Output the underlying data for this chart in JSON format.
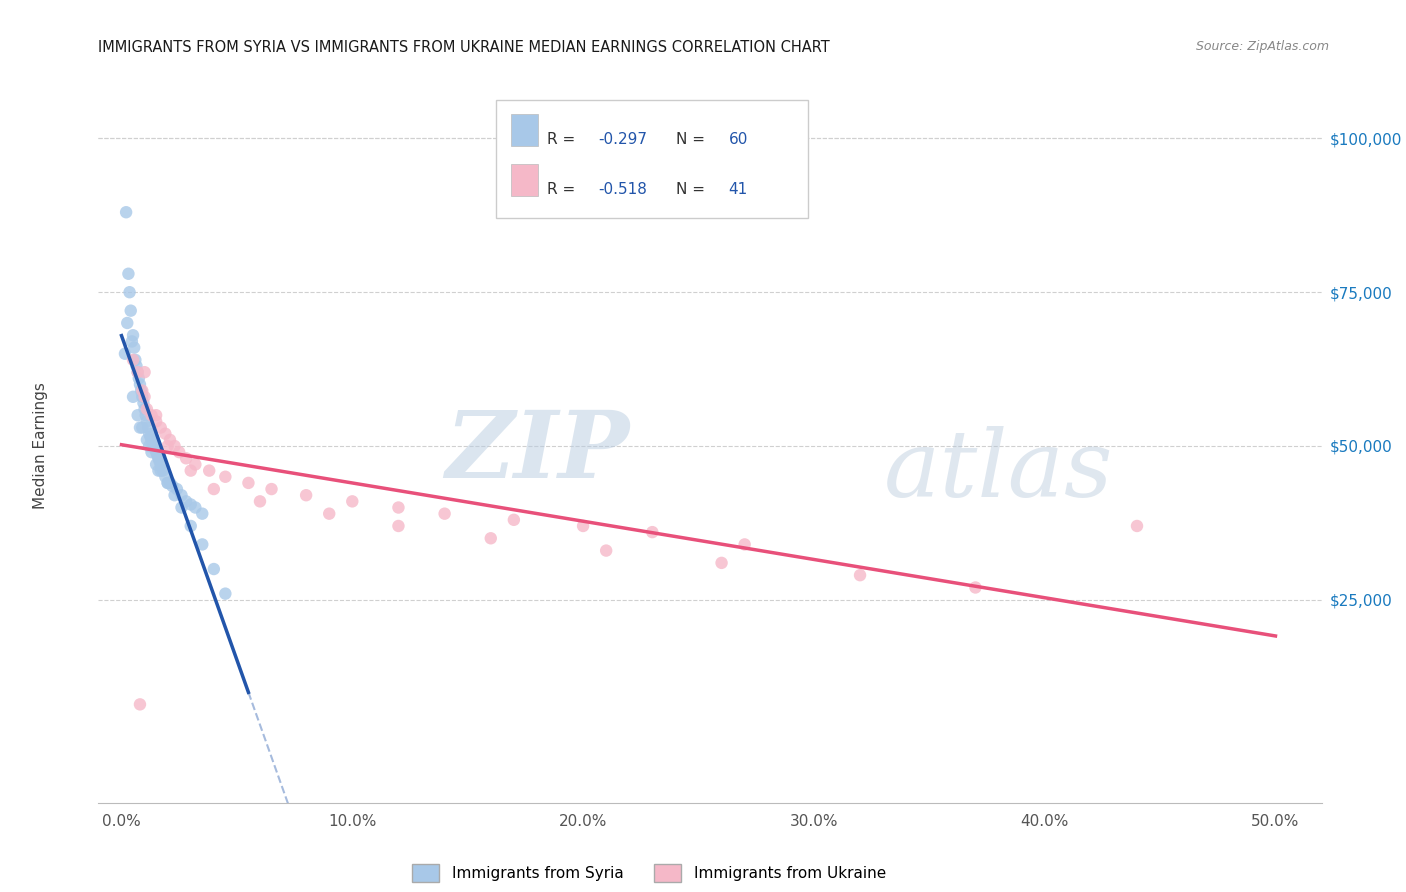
{
  "title": "IMMIGRANTS FROM SYRIA VS IMMIGRANTS FROM UKRAINE MEDIAN EARNINGS CORRELATION CHART",
  "source": "Source: ZipAtlas.com",
  "ylabel": "Median Earnings",
  "xlabel_ticks": [
    "0.0%",
    "10.0%",
    "20.0%",
    "30.0%",
    "40.0%",
    "50.0%"
  ],
  "xlabel_vals": [
    0.0,
    10.0,
    20.0,
    30.0,
    40.0,
    50.0
  ],
  "ylabel_ticks": [
    "$25,000",
    "$50,000",
    "$75,000",
    "$100,000"
  ],
  "ylabel_vals": [
    25000,
    50000,
    75000,
    100000
  ],
  "xlim": [
    -1.0,
    52.0
  ],
  "ylim": [
    -8000,
    108000
  ],
  "syria_color": "#a8c8e8",
  "ukraine_color": "#f5b8c8",
  "syria_line_color": "#2255aa",
  "ukraine_line_color": "#e8507a",
  "syria_R": -0.297,
  "syria_N": 60,
  "ukraine_R": -0.518,
  "ukraine_N": 41,
  "watermark_zip": "ZIP",
  "watermark_atlas": "atlas",
  "syria_x": [
    0.2,
    0.3,
    0.35,
    0.4,
    0.5,
    0.55,
    0.6,
    0.65,
    0.7,
    0.75,
    0.8,
    0.85,
    0.9,
    0.95,
    1.0,
    1.05,
    1.1,
    1.15,
    1.2,
    1.25,
    1.3,
    1.35,
    1.4,
    1.45,
    1.5,
    1.55,
    1.6,
    1.65,
    1.7,
    1.8,
    1.9,
    2.0,
    2.1,
    2.2,
    2.4,
    2.6,
    2.8,
    3.0,
    3.2,
    3.5,
    0.25,
    0.45,
    0.7,
    0.9,
    1.1,
    1.3,
    1.5,
    1.7,
    2.0,
    2.3,
    2.6,
    3.0,
    3.5,
    4.0,
    4.5,
    0.15,
    0.5,
    0.8,
    1.2,
    1.6
  ],
  "syria_y": [
    88000,
    78000,
    75000,
    72000,
    68000,
    66000,
    64000,
    63000,
    62000,
    61000,
    60000,
    59000,
    58000,
    57000,
    56000,
    55000,
    54000,
    53000,
    52000,
    51500,
    51000,
    50500,
    50000,
    49500,
    49000,
    48500,
    48000,
    47500,
    47000,
    46000,
    45000,
    44000,
    44000,
    43500,
    43000,
    42000,
    41000,
    40500,
    40000,
    39000,
    70000,
    67000,
    55000,
    53000,
    51000,
    49000,
    47000,
    46000,
    44000,
    42000,
    40000,
    37000,
    34000,
    30000,
    26000,
    65000,
    58000,
    53000,
    50000,
    46000
  ],
  "ukraine_x": [
    0.5,
    0.7,
    0.9,
    1.0,
    1.1,
    1.3,
    1.5,
    1.7,
    1.9,
    2.1,
    2.3,
    2.5,
    2.8,
    3.2,
    3.8,
    4.5,
    5.5,
    6.5,
    8.0,
    10.0,
    12.0,
    14.0,
    17.0,
    20.0,
    23.0,
    27.0,
    1.0,
    1.5,
    2.0,
    3.0,
    4.0,
    6.0,
    9.0,
    12.0,
    16.0,
    21.0,
    26.0,
    32.0,
    37.0,
    44.0,
    0.8
  ],
  "ukraine_y": [
    64000,
    62000,
    59000,
    58000,
    56000,
    55000,
    54000,
    53000,
    52000,
    51000,
    50000,
    49000,
    48000,
    47000,
    46000,
    45000,
    44000,
    43000,
    42000,
    41000,
    40000,
    39000,
    38000,
    37000,
    36000,
    34000,
    62000,
    55000,
    50000,
    46000,
    43000,
    41000,
    39000,
    37000,
    35000,
    33000,
    31000,
    29000,
    27000,
    37000,
    8000
  ],
  "background_color": "#ffffff",
  "grid_color": "#d0d0d0",
  "legend_R_color": "#2255aa",
  "legend_N_color": "#2255aa",
  "right_axis_color": "#1a7abf"
}
